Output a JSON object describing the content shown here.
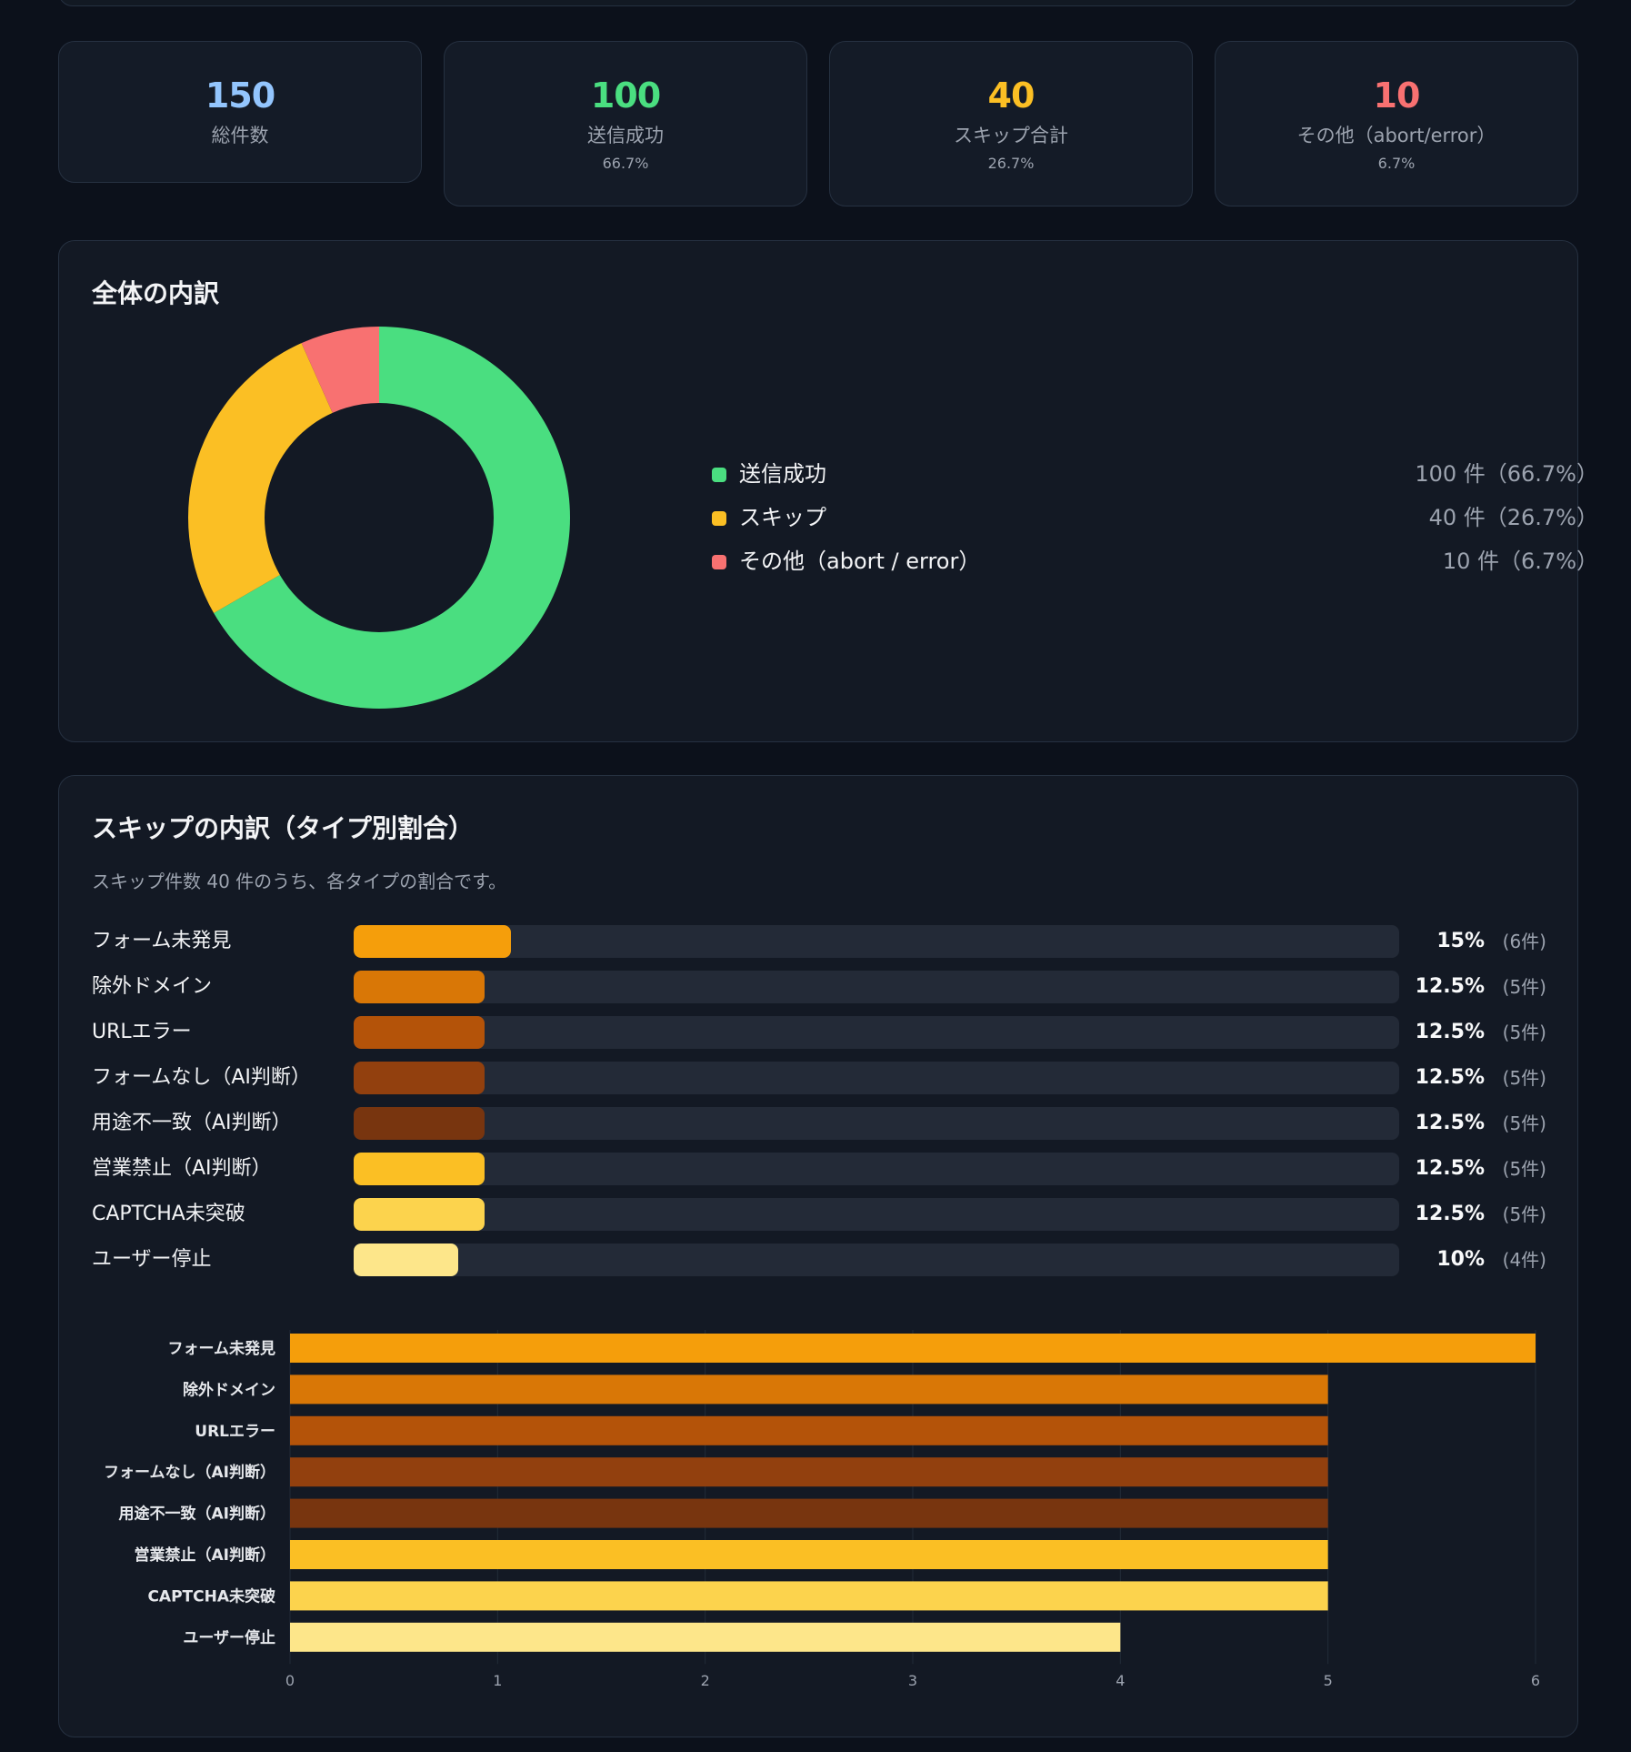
{
  "stats": [
    {
      "value": "150",
      "label": "総件数",
      "pct": "",
      "color": "#93c5fd"
    },
    {
      "value": "100",
      "label": "送信成功",
      "pct": "66.7%",
      "color": "#4ade80"
    },
    {
      "value": "40",
      "label": "スキップ合計",
      "pct": "26.7%",
      "color": "#fbbf24"
    },
    {
      "value": "10",
      "label": "その他（abort/error）",
      "pct": "6.7%",
      "color": "#f87171"
    }
  ],
  "overview": {
    "title": "全体の内訳",
    "legend": [
      {
        "label": "送信成功",
        "value": "100 件（66.7%）",
        "color": "#4ade80"
      },
      {
        "label": "スキップ",
        "value": "40 件（26.7%）",
        "color": "#fbbf24"
      },
      {
        "label": "その他（abort / error）",
        "value": "10 件（6.7%）",
        "color": "#f87171"
      }
    ]
  },
  "skip": {
    "title": "スキップの内訳（タイプ別割合）",
    "subtitle": "スキップ件数 40 件のうち、各タイプの割合です。",
    "rows": [
      {
        "label": "フォーム未発見",
        "pct": "15%",
        "count": "(6件)",
        "fraction": 0.15,
        "color": "#f59e0b"
      },
      {
        "label": "除外ドメイン",
        "pct": "12.5%",
        "count": "(5件)",
        "fraction": 0.125,
        "color": "#d97706"
      },
      {
        "label": "URLエラー",
        "pct": "12.5%",
        "count": "(5件)",
        "fraction": 0.125,
        "color": "#b45309"
      },
      {
        "label": "フォームなし（AI判断）",
        "pct": "12.5%",
        "count": "(5件)",
        "fraction": 0.125,
        "color": "#92400e"
      },
      {
        "label": "用途不一致（AI判断）",
        "pct": "12.5%",
        "count": "(5件)",
        "fraction": 0.125,
        "color": "#78350f"
      },
      {
        "label": "営業禁止（AI判断）",
        "pct": "12.5%",
        "count": "(5件)",
        "fraction": 0.125,
        "color": "#fbbf24"
      },
      {
        "label": "CAPTCHA未突破",
        "pct": "12.5%",
        "count": "(5件)",
        "fraction": 0.125,
        "color": "#fcd34d"
      },
      {
        "label": "ユーザー停止",
        "pct": "10%",
        "count": "(4件)",
        "fraction": 0.1,
        "color": "#fde68a"
      }
    ]
  },
  "chart_data": [
    {
      "type": "pie",
      "title": "全体の内訳",
      "categories": [
        "送信成功",
        "スキップ",
        "その他（abort / error）"
      ],
      "values": [
        100,
        40,
        10
      ],
      "colors": [
        "#4ade80",
        "#fbbf24",
        "#f87171"
      ]
    },
    {
      "type": "bar",
      "orientation": "horizontal",
      "categories": [
        "フォーム未発見",
        "除外ドメイン",
        "URLエラー",
        "フォームなし（AI判断）",
        "用途不一致（AI判断）",
        "営業禁止（AI判断）",
        "CAPTCHA未突破",
        "ユーザー停止"
      ],
      "values": [
        6,
        5,
        5,
        5,
        5,
        5,
        5,
        4
      ],
      "colors": [
        "#f59e0b",
        "#d97706",
        "#b45309",
        "#92400e",
        "#78350f",
        "#fbbf24",
        "#fcd34d",
        "#fde68a"
      ],
      "xlim": [
        0,
        6
      ],
      "xticks": [
        "0",
        "1",
        "2",
        "3",
        "4",
        "5",
        "6"
      ],
      "grid": true
    }
  ]
}
